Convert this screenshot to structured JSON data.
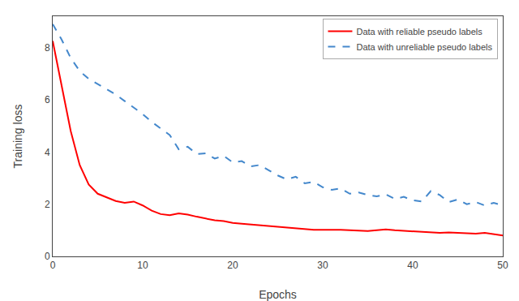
{
  "chart_data": {
    "type": "line",
    "xlabel": "Epochs",
    "ylabel": "Training loss",
    "x": [
      0,
      1,
      2,
      3,
      4,
      5,
      6,
      7,
      8,
      9,
      10,
      11,
      12,
      13,
      14,
      15,
      16,
      17,
      18,
      19,
      20,
      21,
      22,
      23,
      24,
      25,
      26,
      27,
      28,
      29,
      30,
      31,
      32,
      33,
      34,
      35,
      36,
      37,
      38,
      39,
      40,
      41,
      42,
      43,
      44,
      45,
      46,
      47,
      48,
      49,
      50
    ],
    "xlim": [
      0,
      50
    ],
    "ylim": [
      0,
      9.2
    ],
    "xticks": [
      0,
      10,
      20,
      30,
      40,
      50
    ],
    "yticks": [
      0,
      2,
      4,
      6,
      8
    ],
    "grid": false,
    "legend": "upper right",
    "series": [
      {
        "name": "Data with reliable pseudo labels",
        "color": "#ff0000",
        "line_style": "solid",
        "values": [
          8.25,
          6.5,
          4.8,
          3.5,
          2.75,
          2.4,
          2.25,
          2.12,
          2.05,
          2.1,
          1.95,
          1.75,
          1.62,
          1.58,
          1.65,
          1.6,
          1.52,
          1.45,
          1.38,
          1.35,
          1.28,
          1.25,
          1.22,
          1.2,
          1.18,
          1.15,
          1.12,
          1.08,
          1.05,
          1.02,
          1.02,
          1.03,
          1.02,
          1.0,
          0.98,
          0.97,
          1.0,
          1.03,
          1.0,
          0.98,
          0.95,
          0.93,
          0.92,
          0.9,
          0.92,
          0.9,
          0.88,
          0.87,
          0.9,
          0.85,
          0.8
        ]
      },
      {
        "name": "Data with unreliable pseudo labels",
        "color": "#4488cc",
        "line_style": "dashed",
        "values": [
          8.9,
          8.3,
          7.6,
          7.1,
          6.8,
          6.6,
          6.4,
          6.2,
          5.95,
          5.7,
          5.45,
          5.15,
          4.9,
          4.65,
          4.1,
          4.2,
          3.92,
          3.95,
          3.75,
          3.85,
          3.6,
          3.65,
          3.45,
          3.5,
          3.3,
          3.1,
          2.95,
          3.05,
          2.8,
          2.85,
          2.65,
          2.55,
          2.6,
          2.4,
          2.45,
          2.35,
          2.3,
          2.38,
          2.2,
          2.28,
          2.15,
          2.1,
          2.5,
          2.35,
          2.08,
          2.18,
          2.0,
          2.08,
          1.95,
          2.05,
          1.95
        ]
      }
    ]
  }
}
